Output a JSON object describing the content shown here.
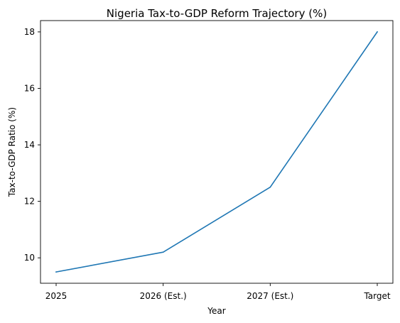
{
  "chart_data": {
    "type": "line",
    "title": "Nigeria Tax-to-GDP Reform Trajectory (%)",
    "xlabel": "Year",
    "ylabel": "Tax-to-GDP Ratio (%)",
    "categories": [
      "2025",
      "2026 (Est.)",
      "2027 (Est.)",
      "Target"
    ],
    "series": [
      {
        "values": [
          9.5,
          10.2,
          12.5,
          18.0
        ],
        "color": "#1f77b4"
      }
    ],
    "yticks": [
      10,
      12,
      14,
      16,
      18
    ],
    "ylim": [
      9.1,
      18.4
    ],
    "grid": false,
    "legend": false
  }
}
